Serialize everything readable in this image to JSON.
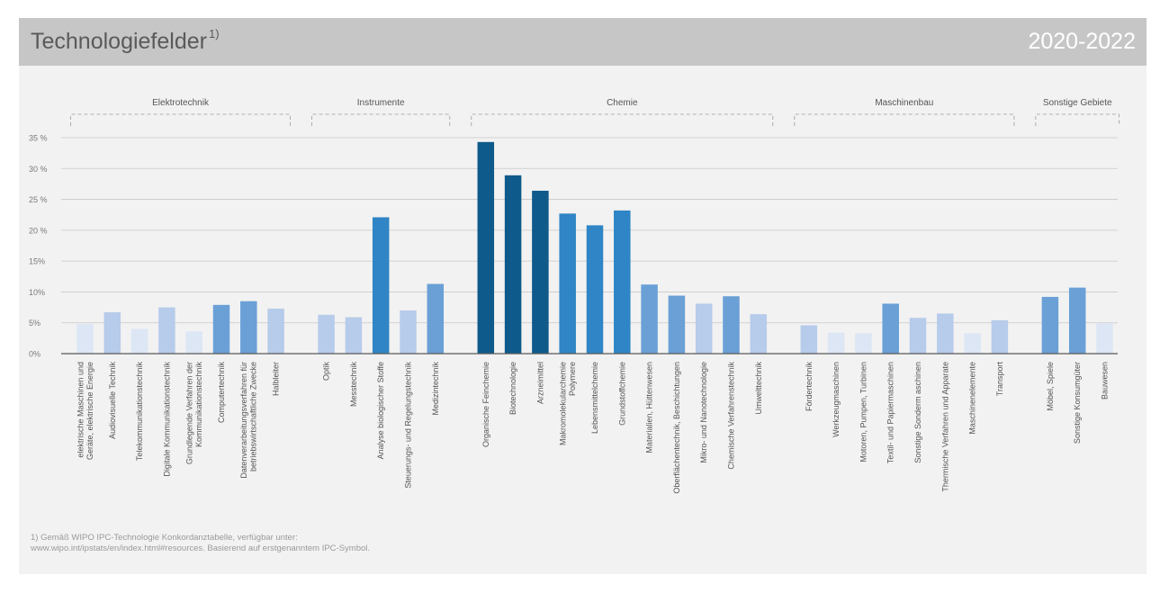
{
  "header": {
    "title": "Technologiefelder",
    "title_sup": "1)",
    "period": "2020-2022"
  },
  "colors": {
    "header_bg": "#c6c6c6",
    "panel_bg": "#f2f2f2",
    "shades": [
      "#dce6f5",
      "#b7cbea",
      "#6aa0d6",
      "#2f85c5",
      "#0e5a8a"
    ]
  },
  "footnote": {
    "line1": "1) Gemäß WIPO IPC-Technologie Konkordanztabelle, verfügbar unter:",
    "line2": "www.wipo.int/ipstats/en/index.html#resources. Basierend auf erstgenanntem IPC-Symbol."
  },
  "chart_data": {
    "type": "bar",
    "ylim": [
      0,
      35
    ],
    "y_ticks": [
      {
        "value": 0,
        "label": "0%"
      },
      {
        "value": 5,
        "label": "5%"
      },
      {
        "value": 10,
        "label": "10%"
      },
      {
        "value": 15,
        "label": "15%"
      },
      {
        "value": 20,
        "label": "20 %"
      },
      {
        "value": 25,
        "label": "25 %"
      },
      {
        "value": 30,
        "label": "30 %"
      },
      {
        "value": 35,
        "label": "35 %"
      }
    ],
    "grid": true,
    "groups": [
      {
        "name": "Elektrotechnik",
        "categories": [
          {
            "label": "elektrische Maschinen und\nGeräte, elektrische Energie",
            "value": 4.8,
            "shade": 0
          },
          {
            "label": "Audiovisuelle Technik",
            "value": 6.7,
            "shade": 1
          },
          {
            "label": "Telekommunikationstechnik",
            "value": 4.0,
            "shade": 0
          },
          {
            "label": "Digitale Kommunikationstechnik",
            "value": 7.5,
            "shade": 1
          },
          {
            "label": "Grundlegende Verfahren der\nKommunikationstechnik",
            "value": 3.6,
            "shade": 0
          },
          {
            "label": "Computertechnik",
            "value": 7.9,
            "shade": 2
          },
          {
            "label": "Datenverarbeitungsverfahren für\nbetriebswirtschaftliche Zwecke",
            "value": 8.5,
            "shade": 2
          },
          {
            "label": "Halbleiter",
            "value": 7.3,
            "shade": 1
          }
        ]
      },
      {
        "name": "Instrumente",
        "categories": [
          {
            "label": "Optik",
            "value": 6.3,
            "shade": 1
          },
          {
            "label": "Messtechnik",
            "value": 5.9,
            "shade": 1
          },
          {
            "label": "Analyse biologischer Stoffe",
            "value": 22.1,
            "shade": 3
          },
          {
            "label": "Steuerungs- und Regelungstechnik",
            "value": 7.0,
            "shade": 1
          },
          {
            "label": "Medizintechnik",
            "value": 11.3,
            "shade": 2
          }
        ]
      },
      {
        "name": "Chemie",
        "categories": [
          {
            "label": "Organische Feinchemie",
            "value": 34.3,
            "shade": 4
          },
          {
            "label": "Biotechnologie",
            "value": 28.9,
            "shade": 4
          },
          {
            "label": "Arzneimittel",
            "value": 26.4,
            "shade": 4
          },
          {
            "label": "Makromolekularchemie\nPolymere",
            "value": 22.7,
            "shade": 3
          },
          {
            "label": "Lebensmittelchemie",
            "value": 20.8,
            "shade": 3
          },
          {
            "label": "Grundstoffchemie",
            "value": 23.2,
            "shade": 3
          },
          {
            "label": "Materialien, Hüttenwesen",
            "value": 11.2,
            "shade": 2
          },
          {
            "label": "Oberflächentechnik, Beschichtungen",
            "value": 9.4,
            "shade": 2
          },
          {
            "label": "Mikro- und Nanotechnologie",
            "value": 8.1,
            "shade": 1
          },
          {
            "label": "Chemische Verfahrenstechnik",
            "value": 9.3,
            "shade": 2
          },
          {
            "label": "Umwelttechnik",
            "value": 6.4,
            "shade": 1
          }
        ]
      },
      {
        "name": "Maschinenbau",
        "categories": [
          {
            "label": "Fördertechnik",
            "value": 4.6,
            "shade": 1
          },
          {
            "label": "Werkzeugmaschinen",
            "value": 3.4,
            "shade": 0
          },
          {
            "label": "Motoren, Pumpen, Turbinen",
            "value": 3.3,
            "shade": 0
          },
          {
            "label": "Textil- und Papiermaschinen",
            "value": 8.1,
            "shade": 2
          },
          {
            "label": "Sonstige Sonderm aschinen",
            "value": 5.8,
            "shade": 1
          },
          {
            "label": "Thermische Verfahren und Apparate",
            "value": 6.5,
            "shade": 1
          },
          {
            "label": "Maschinenelemente",
            "value": 3.3,
            "shade": 0
          },
          {
            "label": "Transport",
            "value": 5.4,
            "shade": 1
          }
        ]
      },
      {
        "name": "Sonstige Gebiete",
        "categories": [
          {
            "label": "Möbel, Spiele",
            "value": 9.2,
            "shade": 2
          },
          {
            "label": "Sonstige Konsumgüter",
            "value": 10.7,
            "shade": 2
          },
          {
            "label": "Bauwesen",
            "value": 4.9,
            "shade": 0
          }
        ]
      }
    ]
  }
}
